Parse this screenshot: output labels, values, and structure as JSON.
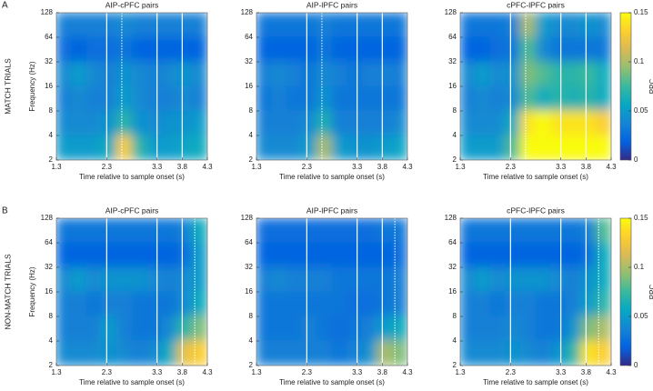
{
  "axes": {
    "xlabel": "Time relative to sample onset (s)",
    "ylabel": "Frequency (Hz)",
    "xlim": [
      1.3,
      4.3
    ],
    "xticks": [
      1.3,
      2.3,
      3.3,
      3.8,
      4.3
    ],
    "ylim": [
      2,
      128
    ],
    "yticks": [
      2,
      4,
      8,
      16,
      32,
      64,
      128
    ],
    "y_log": true,
    "events": [
      2.3,
      3.3,
      3.8
    ]
  },
  "colorbar": {
    "label": "PPC",
    "lim": [
      0,
      0.15
    ],
    "ticks": [
      0,
      0.05,
      0.1,
      0.15
    ],
    "colors": [
      "#352a87",
      "#0363e1",
      "#1485d4",
      "#06a7c6",
      "#38b99e",
      "#92bf73",
      "#d9ba56",
      "#fcce2e",
      "#f9fb0e"
    ]
  },
  "rows": [
    {
      "letter": "A",
      "label": "MATCH TRIALS",
      "dotted": 2.6,
      "panels": [
        {
          "title": "AIP-cPFC pairs",
          "values": [
            [
              0.035,
              0.035,
              0.035,
              0.035,
              0.04,
              0.035,
              0.035,
              0.035,
              0.035,
              0.035
            ],
            [
              0.025,
              0.02,
              0.025,
              0.025,
              0.03,
              0.02,
              0.02,
              0.02,
              0.02,
              0.02
            ],
            [
              0.04,
              0.05,
              0.04,
              0.035,
              0.045,
              0.04,
              0.035,
              0.04,
              0.045,
              0.04
            ],
            [
              0.035,
              0.04,
              0.035,
              0.035,
              0.05,
              0.04,
              0.035,
              0.035,
              0.04,
              0.035
            ],
            [
              0.04,
              0.04,
              0.04,
              0.045,
              0.07,
              0.045,
              0.04,
              0.045,
              0.045,
              0.05
            ],
            [
              0.05,
              0.05,
              0.05,
              0.06,
              0.13,
              0.07,
              0.05,
              0.05,
              0.055,
              0.06
            ]
          ]
        },
        {
          "title": "AIP-lPFC pairs",
          "values": [
            [
              0.03,
              0.03,
              0.03,
              0.03,
              0.035,
              0.03,
              0.03,
              0.03,
              0.03,
              0.03
            ],
            [
              0.02,
              0.02,
              0.02,
              0.02,
              0.03,
              0.02,
              0.02,
              0.02,
              0.02,
              0.02
            ],
            [
              0.035,
              0.04,
              0.035,
              0.03,
              0.04,
              0.035,
              0.03,
              0.035,
              0.035,
              0.035
            ],
            [
              0.03,
              0.035,
              0.03,
              0.03,
              0.045,
              0.03,
              0.03,
              0.03,
              0.03,
              0.03
            ],
            [
              0.035,
              0.035,
              0.035,
              0.04,
              0.065,
              0.035,
              0.035,
              0.035,
              0.035,
              0.04
            ],
            [
              0.04,
              0.04,
              0.04,
              0.05,
              0.1,
              0.05,
              0.045,
              0.045,
              0.05,
              0.055
            ]
          ]
        },
        {
          "title": "cPFC-lPFC pairs",
          "values": [
            [
              0.03,
              0.03,
              0.03,
              0.035,
              0.1,
              0.05,
              0.04,
              0.04,
              0.045,
              0.04
            ],
            [
              0.02,
              0.02,
              0.025,
              0.03,
              0.08,
              0.04,
              0.03,
              0.03,
              0.03,
              0.03
            ],
            [
              0.04,
              0.05,
              0.04,
              0.045,
              0.09,
              0.08,
              0.07,
              0.07,
              0.075,
              0.06
            ],
            [
              0.035,
              0.04,
              0.035,
              0.04,
              0.08,
              0.06,
              0.07,
              0.065,
              0.07,
              0.06
            ],
            [
              0.04,
              0.04,
              0.04,
              0.06,
              0.14,
              0.15,
              0.14,
              0.14,
              0.14,
              0.13
            ],
            [
              0.05,
              0.05,
              0.05,
              0.08,
              0.15,
              0.15,
              0.15,
              0.15,
              0.15,
              0.15
            ]
          ]
        }
      ]
    },
    {
      "letter": "B",
      "label": "NON-MATCH TRIALS",
      "dotted": 4.05,
      "panels": [
        {
          "title": "AIP-cPFC pairs",
          "values": [
            [
              0.03,
              0.03,
              0.03,
              0.03,
              0.03,
              0.03,
              0.03,
              0.03,
              0.035,
              0.06
            ],
            [
              0.02,
              0.02,
              0.02,
              0.02,
              0.02,
              0.02,
              0.02,
              0.02,
              0.025,
              0.05
            ],
            [
              0.04,
              0.05,
              0.04,
              0.045,
              0.045,
              0.045,
              0.04,
              0.035,
              0.04,
              0.05
            ],
            [
              0.035,
              0.035,
              0.03,
              0.035,
              0.035,
              0.03,
              0.03,
              0.03,
              0.04,
              0.06
            ],
            [
              0.035,
              0.035,
              0.035,
              0.05,
              0.035,
              0.03,
              0.03,
              0.04,
              0.07,
              0.09
            ],
            [
              0.04,
              0.04,
              0.04,
              0.045,
              0.04,
              0.035,
              0.04,
              0.06,
              0.12,
              0.13
            ]
          ]
        },
        {
          "title": "AIP-lPFC pairs",
          "values": [
            [
              0.025,
              0.025,
              0.025,
              0.025,
              0.025,
              0.025,
              0.025,
              0.025,
              0.03,
              0.03
            ],
            [
              0.02,
              0.02,
              0.02,
              0.02,
              0.02,
              0.02,
              0.02,
              0.02,
              0.02,
              0.025
            ],
            [
              0.035,
              0.04,
              0.035,
              0.035,
              0.035,
              0.03,
              0.03,
              0.03,
              0.03,
              0.035
            ],
            [
              0.03,
              0.03,
              0.03,
              0.03,
              0.03,
              0.03,
              0.025,
              0.025,
              0.03,
              0.035
            ],
            [
              0.03,
              0.03,
              0.03,
              0.035,
              0.03,
              0.025,
              0.03,
              0.035,
              0.05,
              0.06
            ],
            [
              0.035,
              0.035,
              0.035,
              0.035,
              0.035,
              0.03,
              0.035,
              0.045,
              0.1,
              0.09
            ]
          ]
        },
        {
          "title": "cPFC-lPFC pairs",
          "values": [
            [
              0.03,
              0.03,
              0.03,
              0.03,
              0.03,
              0.03,
              0.03,
              0.03,
              0.035,
              0.08
            ],
            [
              0.02,
              0.02,
              0.02,
              0.02,
              0.02,
              0.02,
              0.02,
              0.02,
              0.025,
              0.06
            ],
            [
              0.04,
              0.05,
              0.04,
              0.045,
              0.045,
              0.045,
              0.04,
              0.035,
              0.045,
              0.06
            ],
            [
              0.035,
              0.035,
              0.03,
              0.035,
              0.035,
              0.03,
              0.03,
              0.035,
              0.05,
              0.07
            ],
            [
              0.035,
              0.035,
              0.035,
              0.04,
              0.035,
              0.03,
              0.03,
              0.045,
              0.09,
              0.1
            ],
            [
              0.04,
              0.04,
              0.04,
              0.045,
              0.04,
              0.035,
              0.045,
              0.07,
              0.14,
              0.13
            ]
          ]
        }
      ]
    }
  ]
}
